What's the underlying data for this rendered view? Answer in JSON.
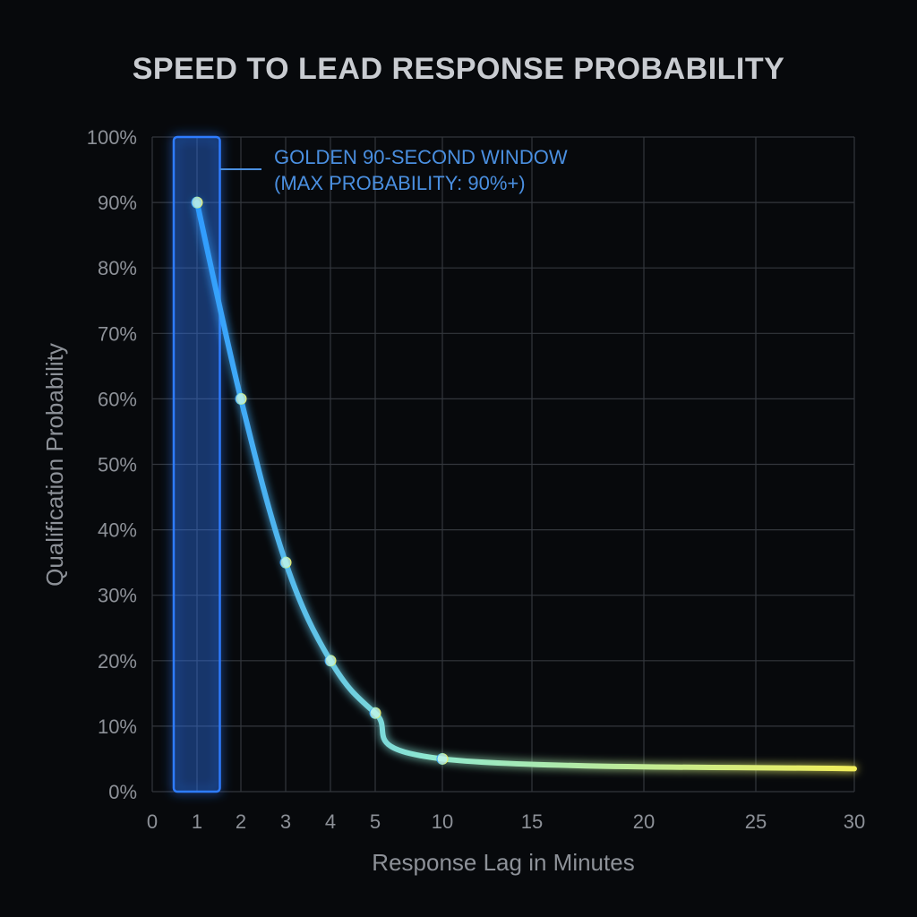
{
  "chart_data": {
    "type": "line",
    "title": "SPEED TO LEAD RESPONSE PROBABILITY",
    "xlabel": "Response Lag in Minutes",
    "ylabel": "Qualification Probability",
    "x_ticks": [
      "0",
      "1",
      "2",
      "3",
      "4",
      "5",
      "10",
      "15",
      "20",
      "25",
      "30"
    ],
    "y_ticks": [
      "0%",
      "10%",
      "20%",
      "30%",
      "40%",
      "50%",
      "60%",
      "70%",
      "80%",
      "90%",
      "100%"
    ],
    "ylim": [
      0,
      100
    ],
    "grid": true,
    "series": [
      {
        "x": [
          1,
          2,
          3,
          4,
          5,
          10,
          30
        ],
        "y": [
          90,
          60,
          35,
          20,
          12,
          5,
          3.5
        ]
      }
    ],
    "annotation": {
      "lines": [
        "GOLDEN 90-SECOND WINDOW",
        "(MAX PROBABILITY: 90%+)"
      ],
      "x_range": [
        0.5,
        1.5
      ]
    },
    "colors": {
      "line_start": "#2e9bff",
      "line_mid": "#8fe8d0",
      "line_end": "#f2ee5a",
      "highlight": "#2f7bff"
    }
  }
}
